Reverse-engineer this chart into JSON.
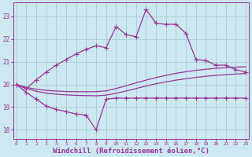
{
  "background_color": "#cce8f0",
  "grid_color": "#aaccd8",
  "line_color": "#993399",
  "xlabel": "Windchill (Refroidissement éolien,°C)",
  "xlabel_fontsize": 6.5,
  "yticks": [
    18,
    19,
    20,
    21,
    22,
    23
  ],
  "xticks": [
    0,
    1,
    2,
    3,
    4,
    5,
    6,
    7,
    8,
    9,
    10,
    11,
    12,
    13,
    14,
    15,
    16,
    17,
    18,
    19,
    20,
    21,
    22,
    23
  ],
  "xlim": [
    -0.3,
    23.3
  ],
  "ylim": [
    17.6,
    23.6
  ],
  "series_high_x": [
    0,
    1,
    2,
    3,
    4,
    5,
    6,
    7,
    8,
    9,
    10,
    11,
    12,
    13,
    14,
    15,
    16,
    17,
    18,
    19,
    20,
    21,
    22,
    23
  ],
  "series_high_y": [
    20.0,
    19.82,
    20.2,
    20.55,
    20.85,
    21.1,
    21.35,
    21.55,
    21.7,
    21.62,
    22.55,
    22.2,
    22.1,
    23.3,
    22.7,
    22.65,
    22.65,
    22.25,
    21.1,
    21.05,
    20.85,
    20.85,
    20.65,
    20.55
  ],
  "series_low_x": [
    0,
    1,
    2,
    3,
    4,
    5,
    6,
    7,
    8,
    9,
    10,
    11,
    12,
    13,
    14,
    15,
    16,
    17,
    18,
    19,
    20,
    21,
    22,
    23
  ],
  "series_low_y": [
    20.0,
    19.65,
    19.35,
    19.05,
    18.9,
    18.8,
    18.7,
    18.65,
    18.0,
    19.35,
    19.4,
    19.4,
    19.4,
    19.4,
    19.4,
    19.4,
    19.4,
    19.4,
    19.4,
    19.4,
    19.4,
    19.4,
    19.4,
    19.4
  ],
  "series_smooth1_x": [
    0,
    1,
    2,
    3,
    4,
    5,
    6,
    7,
    8,
    9,
    10,
    11,
    12,
    13,
    14,
    15,
    16,
    17,
    18,
    19,
    20,
    21,
    22,
    23
  ],
  "series_smooth1_y": [
    20.0,
    19.87,
    19.79,
    19.74,
    19.71,
    19.69,
    19.68,
    19.68,
    19.68,
    19.72,
    19.82,
    19.94,
    20.07,
    20.19,
    20.3,
    20.4,
    20.49,
    20.56,
    20.62,
    20.67,
    20.71,
    20.74,
    20.76,
    20.78
  ],
  "series_smooth2_x": [
    0,
    1,
    2,
    3,
    4,
    5,
    6,
    7,
    8,
    9,
    10,
    11,
    12,
    13,
    14,
    15,
    16,
    17,
    18,
    19,
    20,
    21,
    22,
    23
  ],
  "series_smooth2_y": [
    20.0,
    19.82,
    19.7,
    19.62,
    19.57,
    19.54,
    19.52,
    19.51,
    19.5,
    19.53,
    19.61,
    19.71,
    19.82,
    19.93,
    20.03,
    20.11,
    20.19,
    20.25,
    20.31,
    20.36,
    20.4,
    20.43,
    20.46,
    20.48
  ]
}
